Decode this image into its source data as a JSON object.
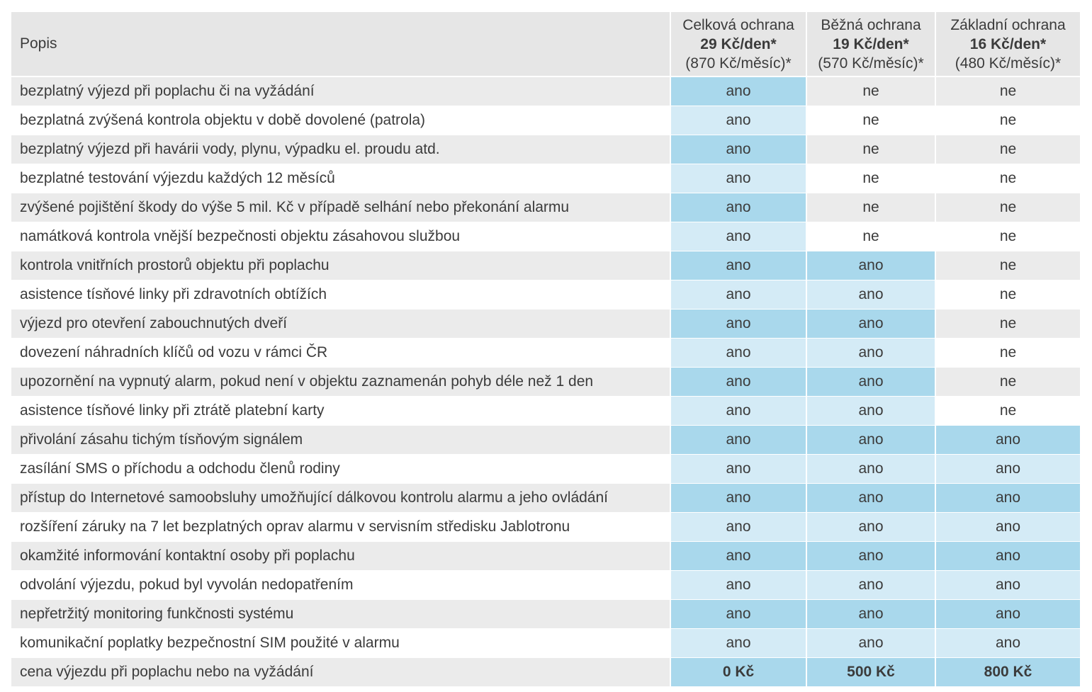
{
  "colors": {
    "row_gray": "#ebebeb",
    "header_gray": "#e6e6e6",
    "highlight_odd": "#a9d8ec",
    "highlight_even": "#d4ebf6",
    "text": "#3b3b3b"
  },
  "table": {
    "header": {
      "description_label": "Popis",
      "plans": [
        {
          "name": "Celková ochrana",
          "price_day": "29 Kč/den*",
          "price_month": "(870 Kč/měsíc)*"
        },
        {
          "name": "Běžná ochrana",
          "price_day": "19 Kč/den*",
          "price_month": "(570 Kč/měsíc)*"
        },
        {
          "name": "Základní ochrana",
          "price_day": "16 Kč/den*",
          "price_month": "(480 Kč/měsíc)*"
        }
      ]
    },
    "rows": [
      {
        "label": "bezplatný výjezd při poplachu či na vyžádání",
        "values": [
          "ano",
          "ne",
          "ne"
        ]
      },
      {
        "label": "bezplatná zvýšená kontrola objektu v době dovolené (patrola)",
        "values": [
          "ano",
          "ne",
          "ne"
        ]
      },
      {
        "label": "bezplatný výjezd při havárii vody, plynu, výpadku el. proudu atd.",
        "values": [
          "ano",
          "ne",
          "ne"
        ]
      },
      {
        "label": "bezplatné testování výjezdu každých 12 měsíců",
        "values": [
          "ano",
          "ne",
          "ne"
        ]
      },
      {
        "label": "zvýšené pojištění škody do výše 5 mil. Kč v případě selhání nebo překonání alarmu",
        "values": [
          "ano",
          "ne",
          "ne"
        ]
      },
      {
        "label": "namátková kontrola vnější bezpečnosti objektu zásahovou službou",
        "values": [
          "ano",
          "ne",
          "ne"
        ]
      },
      {
        "label": "kontrola vnitřních prostorů objektu při poplachu",
        "values": [
          "ano",
          "ano",
          "ne"
        ]
      },
      {
        "label": "asistence tísňové linky při zdravotních obtížích",
        "values": [
          "ano",
          "ano",
          "ne"
        ]
      },
      {
        "label": "výjezd pro otevření zabouchnutých dveří",
        "values": [
          "ano",
          "ano",
          "ne"
        ]
      },
      {
        "label": "dovezení náhradních klíčů od vozu v rámci ČR",
        "values": [
          "ano",
          "ano",
          "ne"
        ]
      },
      {
        "label": "upozornění na vypnutý alarm, pokud není v objektu zaznamenán pohyb déle než 1 den",
        "values": [
          "ano",
          "ano",
          "ne"
        ]
      },
      {
        "label": "asistence tísňové linky při ztrátě platební karty",
        "values": [
          "ano",
          "ano",
          "ne"
        ]
      },
      {
        "label": "přivolání zásahu tichým tísňovým signálem",
        "values": [
          "ano",
          "ano",
          "ano"
        ]
      },
      {
        "label": "zasílání SMS o příchodu a odchodu členů rodiny",
        "values": [
          "ano",
          "ano",
          "ano"
        ]
      },
      {
        "label": "přístup do Internetové samoobsluhy umožňující dálkovou kontrolu alarmu a jeho ovládání",
        "values": [
          "ano",
          "ano",
          "ano"
        ]
      },
      {
        "label": "rozšíření záruky na 7 let bezplatných oprav alarmu v servisním středisku Jablotronu",
        "values": [
          "ano",
          "ano",
          "ano"
        ]
      },
      {
        "label": "okamžité informování kontaktní osoby při poplachu",
        "values": [
          "ano",
          "ano",
          "ano"
        ]
      },
      {
        "label": "odvolání výjezdu, pokud byl vyvolán nedopatřením",
        "values": [
          "ano",
          "ano",
          "ano"
        ]
      },
      {
        "label": "nepřetržitý monitoring funkčnosti systému",
        "values": [
          "ano",
          "ano",
          "ano"
        ]
      },
      {
        "label": "komunikační poplatky bezpečnostní SIM použité v alarmu",
        "values": [
          "ano",
          "ano",
          "ano"
        ]
      },
      {
        "label": "cena výjezdu při poplachu nebo na vyžádání",
        "values": [
          "0 Kč",
          "500 Kč",
          "800 Kč"
        ]
      }
    ]
  }
}
